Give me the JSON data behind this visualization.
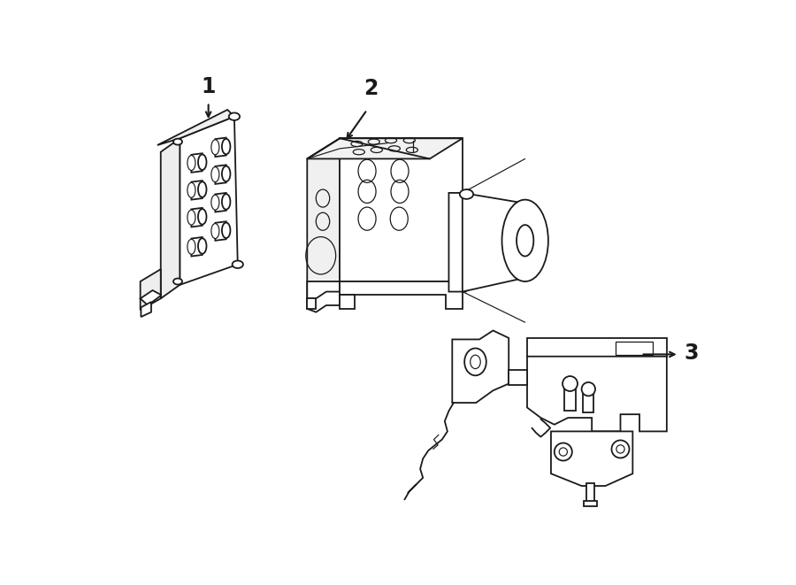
{
  "bg_color": "#ffffff",
  "lc": "#1a1a1a",
  "lw": 1.3,
  "tlw": 0.85,
  "label_fs": 15
}
